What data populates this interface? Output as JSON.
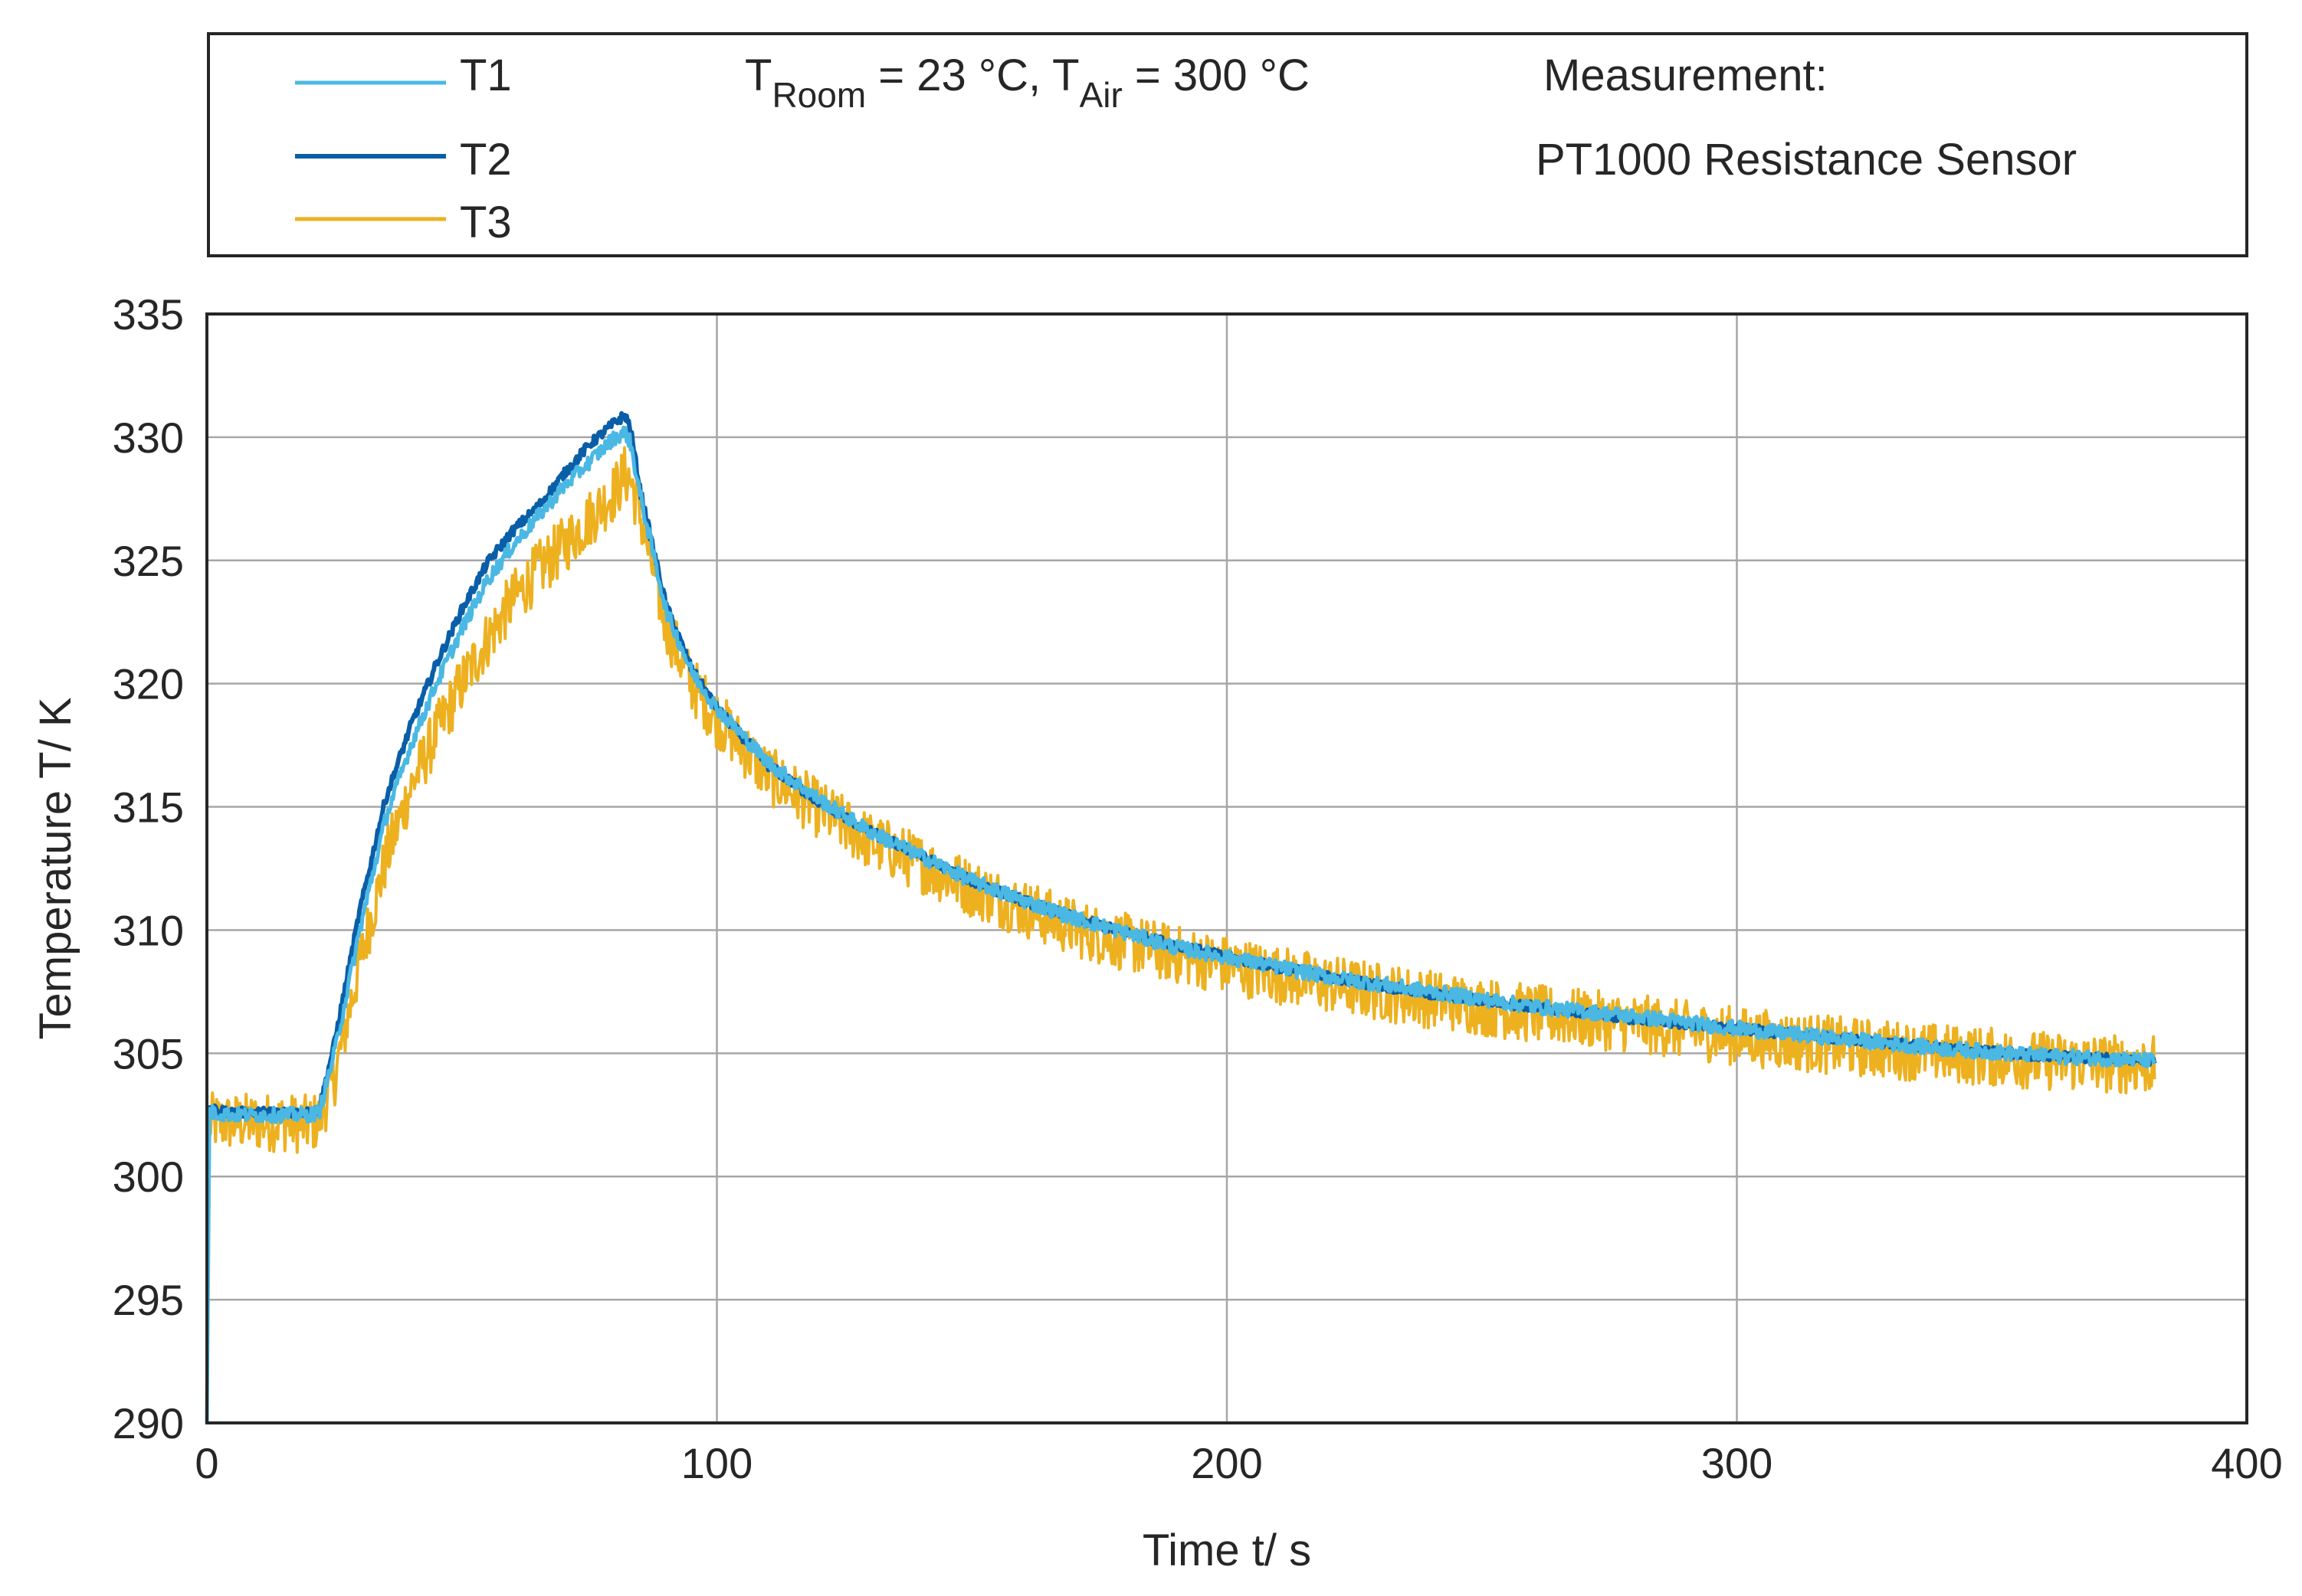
{
  "chart_data": {
    "type": "line",
    "title": "",
    "xlabel": "Time t/ s",
    "ylabel": "Temperature T/ K",
    "xlim": [
      0,
      400
    ],
    "ylim": [
      290,
      335
    ],
    "xticks": [
      0,
      100,
      200,
      300,
      400
    ],
    "yticks": [
      290,
      295,
      300,
      305,
      310,
      315,
      320,
      325,
      330,
      335
    ],
    "grid": true,
    "legend_position": "top (outside plot, boxed)",
    "annotations": {
      "conditions_prefix": "T",
      "room_sub": "Room",
      "room_value": " = 23 °C, T",
      "air_sub": "Air",
      "air_value": " = 300 °C",
      "measurement_title": "Measurement:",
      "measurement_sensor": "PT1000 Resistance Sensor"
    },
    "series": [
      {
        "name": "T1",
        "color": "#4ab8e3",
        "noise": 0.3,
        "x": [
          0,
          0.5,
          5,
          10,
          15,
          20,
          22,
          25,
          30,
          35,
          40,
          45,
          50,
          55,
          60,
          65,
          70,
          75,
          80,
          82,
          83,
          85,
          90,
          95,
          100,
          110,
          120,
          130,
          140,
          150,
          160,
          170,
          180,
          190,
          200,
          220,
          240,
          260,
          280,
          300,
          320,
          340,
          360,
          382
        ],
        "y": [
          290,
          302.6,
          302.5,
          302.5,
          302.5,
          302.5,
          302.6,
          305,
          310,
          314.5,
          317.5,
          320,
          322.2,
          324.2,
          325.6,
          326.8,
          328,
          329,
          330,
          330.2,
          329.8,
          327.6,
          323,
          320.5,
          319,
          316.8,
          315.3,
          314,
          313,
          312,
          311.2,
          310.5,
          309.9,
          309.3,
          308.9,
          308.1,
          307.5,
          306.9,
          306.5,
          306,
          305.6,
          305.2,
          304.9,
          304.7
        ]
      },
      {
        "name": "T2",
        "color": "#0a5ea8",
        "noise": 0.2,
        "x": [
          0.5,
          5,
          10,
          15,
          20,
          22,
          25,
          30,
          35,
          40,
          45,
          50,
          55,
          60,
          65,
          70,
          75,
          80,
          82,
          83,
          85,
          90,
          95,
          100,
          110,
          120,
          130,
          140,
          150,
          160,
          170,
          180,
          190,
          200,
          220,
          240,
          260,
          280,
          300,
          320,
          340,
          360,
          382
        ],
        "y": [
          302.7,
          302.6,
          302.6,
          302.6,
          302.6,
          302.7,
          305.4,
          310.8,
          315.3,
          318.3,
          320.8,
          323,
          324.9,
          326.2,
          327.2,
          328.5,
          329.7,
          330.6,
          330.9,
          330.4,
          327.8,
          323.2,
          320.6,
          319,
          316.7,
          315.2,
          314,
          313,
          312,
          311.2,
          310.5,
          309.9,
          309.4,
          308.9,
          308.1,
          307.4,
          306.9,
          306.4,
          306,
          305.6,
          305.2,
          304.9,
          304.7
        ]
      },
      {
        "name": "T3",
        "color": "#edb120",
        "noise": 1.2,
        "x": [
          0.5,
          5,
          10,
          15,
          20,
          22,
          25,
          30,
          35,
          40,
          45,
          50,
          55,
          60,
          65,
          70,
          75,
          80,
          82,
          83,
          85,
          90,
          95,
          100,
          110,
          120,
          130,
          140,
          150,
          160,
          170,
          180,
          190,
          200,
          220,
          240,
          260,
          280,
          300,
          320,
          340,
          360,
          382
        ],
        "y": [
          302.2,
          302.2,
          302.2,
          302.2,
          302.1,
          302.3,
          304,
          308.7,
          312.8,
          315.8,
          318,
          320,
          321.8,
          323.4,
          324.6,
          325.6,
          326.7,
          327.8,
          328.5,
          328.3,
          326.8,
          322.4,
          320,
          318.6,
          316.3,
          314.9,
          313.6,
          312.7,
          311.7,
          310.9,
          310.1,
          309.5,
          309,
          308.6,
          307.8,
          307.2,
          306.6,
          306.2,
          305.7,
          305.3,
          305,
          304.7,
          304.5
        ]
      }
    ]
  }
}
